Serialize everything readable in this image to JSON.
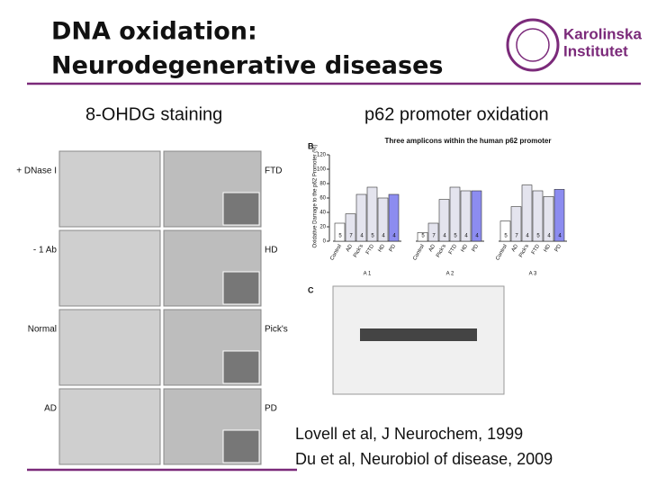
{
  "header": {
    "title_lines": [
      "DNA oxidation:",
      "Neurodegenerative diseases"
    ],
    "logo": [
      "Karolinska",
      "Institutet"
    ]
  },
  "left_panel": {
    "heading": "8-OHDG staining",
    "row_labels": [
      "+ DNase I",
      "- 1 Ab",
      "Normal",
      "AD"
    ],
    "right_labels": [
      "FTD",
      "HD",
      "Pick's",
      "PD"
    ]
  },
  "right_panel": {
    "heading": "p62 promoter oxidation",
    "figure_b": {
      "letter": "B",
      "title": "Three amplicons within the human p62 promoter",
      "y_label": "Oxidative Damage to the p62 Promoter (%)",
      "ylim": [
        0,
        120
      ],
      "yticks": [
        0,
        20,
        40,
        60,
        80,
        100,
        120
      ],
      "categories": [
        "Control",
        "AD",
        "Pick's",
        "FTD",
        "HD",
        "PD"
      ],
      "groups": [
        {
          "name": "A 1",
          "values": [
            25,
            38,
            65,
            75,
            60,
            65
          ],
          "n": [
            5,
            7,
            4,
            5,
            4,
            4
          ]
        },
        {
          "name": "A 2",
          "values": [
            12,
            25,
            58,
            75,
            70,
            70
          ],
          "n": [
            5,
            7,
            4,
            5,
            4,
            4
          ]
        },
        {
          "name": "A 3",
          "values": [
            28,
            48,
            78,
            70,
            62,
            72
          ],
          "n": [
            5,
            7,
            4,
            5,
            4,
            4
          ]
        }
      ]
    },
    "figure_c": {
      "letter": "C"
    }
  },
  "citations": [
    "Lovell et al, J Neurochem, 1999",
    "Du et al, Neurobiol of disease, 2009"
  ]
}
